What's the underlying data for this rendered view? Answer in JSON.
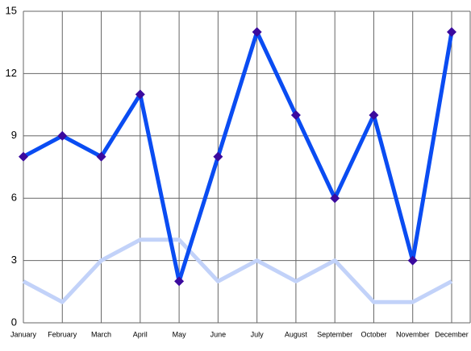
{
  "chart_data": {
    "type": "line",
    "categories": [
      "January",
      "February",
      "March",
      "April",
      "May",
      "June",
      "July",
      "August",
      "September",
      "October",
      "November",
      "December"
    ],
    "series": [
      {
        "color": "#0a4cf2",
        "marker_color": "#3b0a9e",
        "marker": "diamond",
        "values": [
          8,
          9,
          8,
          11,
          2,
          8,
          14,
          10,
          6,
          10,
          3,
          14
        ]
      },
      {
        "color": "#c2d2f9",
        "values": [
          2,
          1,
          3,
          4,
          4,
          2,
          3,
          2,
          3,
          1,
          1,
          2
        ]
      }
    ],
    "ylim": [
      0,
      15
    ],
    "yticks": [
      0,
      3,
      6,
      9,
      12,
      15
    ],
    "grid": true
  }
}
